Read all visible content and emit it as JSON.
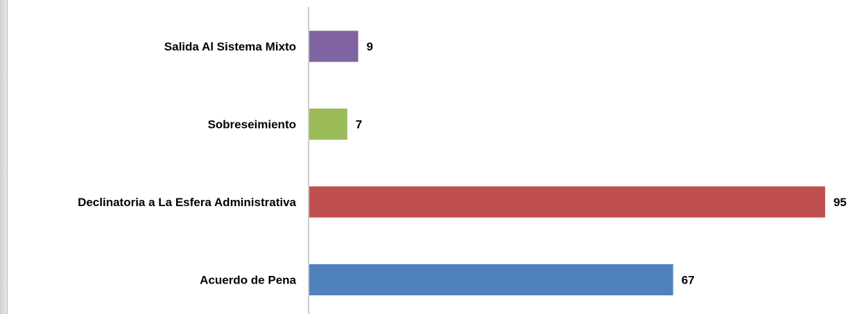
{
  "chart_data": {
    "type": "bar",
    "orientation": "horizontal",
    "categories": [
      "Salida Al Sistema Mixto",
      "Sobreseimiento",
      "Declinatoria a La Esfera Administrativa",
      "Acuerdo de Pena"
    ],
    "values": [
      9,
      7,
      95,
      67
    ],
    "colors": [
      "#8064a2",
      "#9bbb59",
      "#c0504d",
      "#4f81bd"
    ],
    "xlim": [
      0,
      95
    ],
    "grid": false,
    "legend": "none"
  }
}
